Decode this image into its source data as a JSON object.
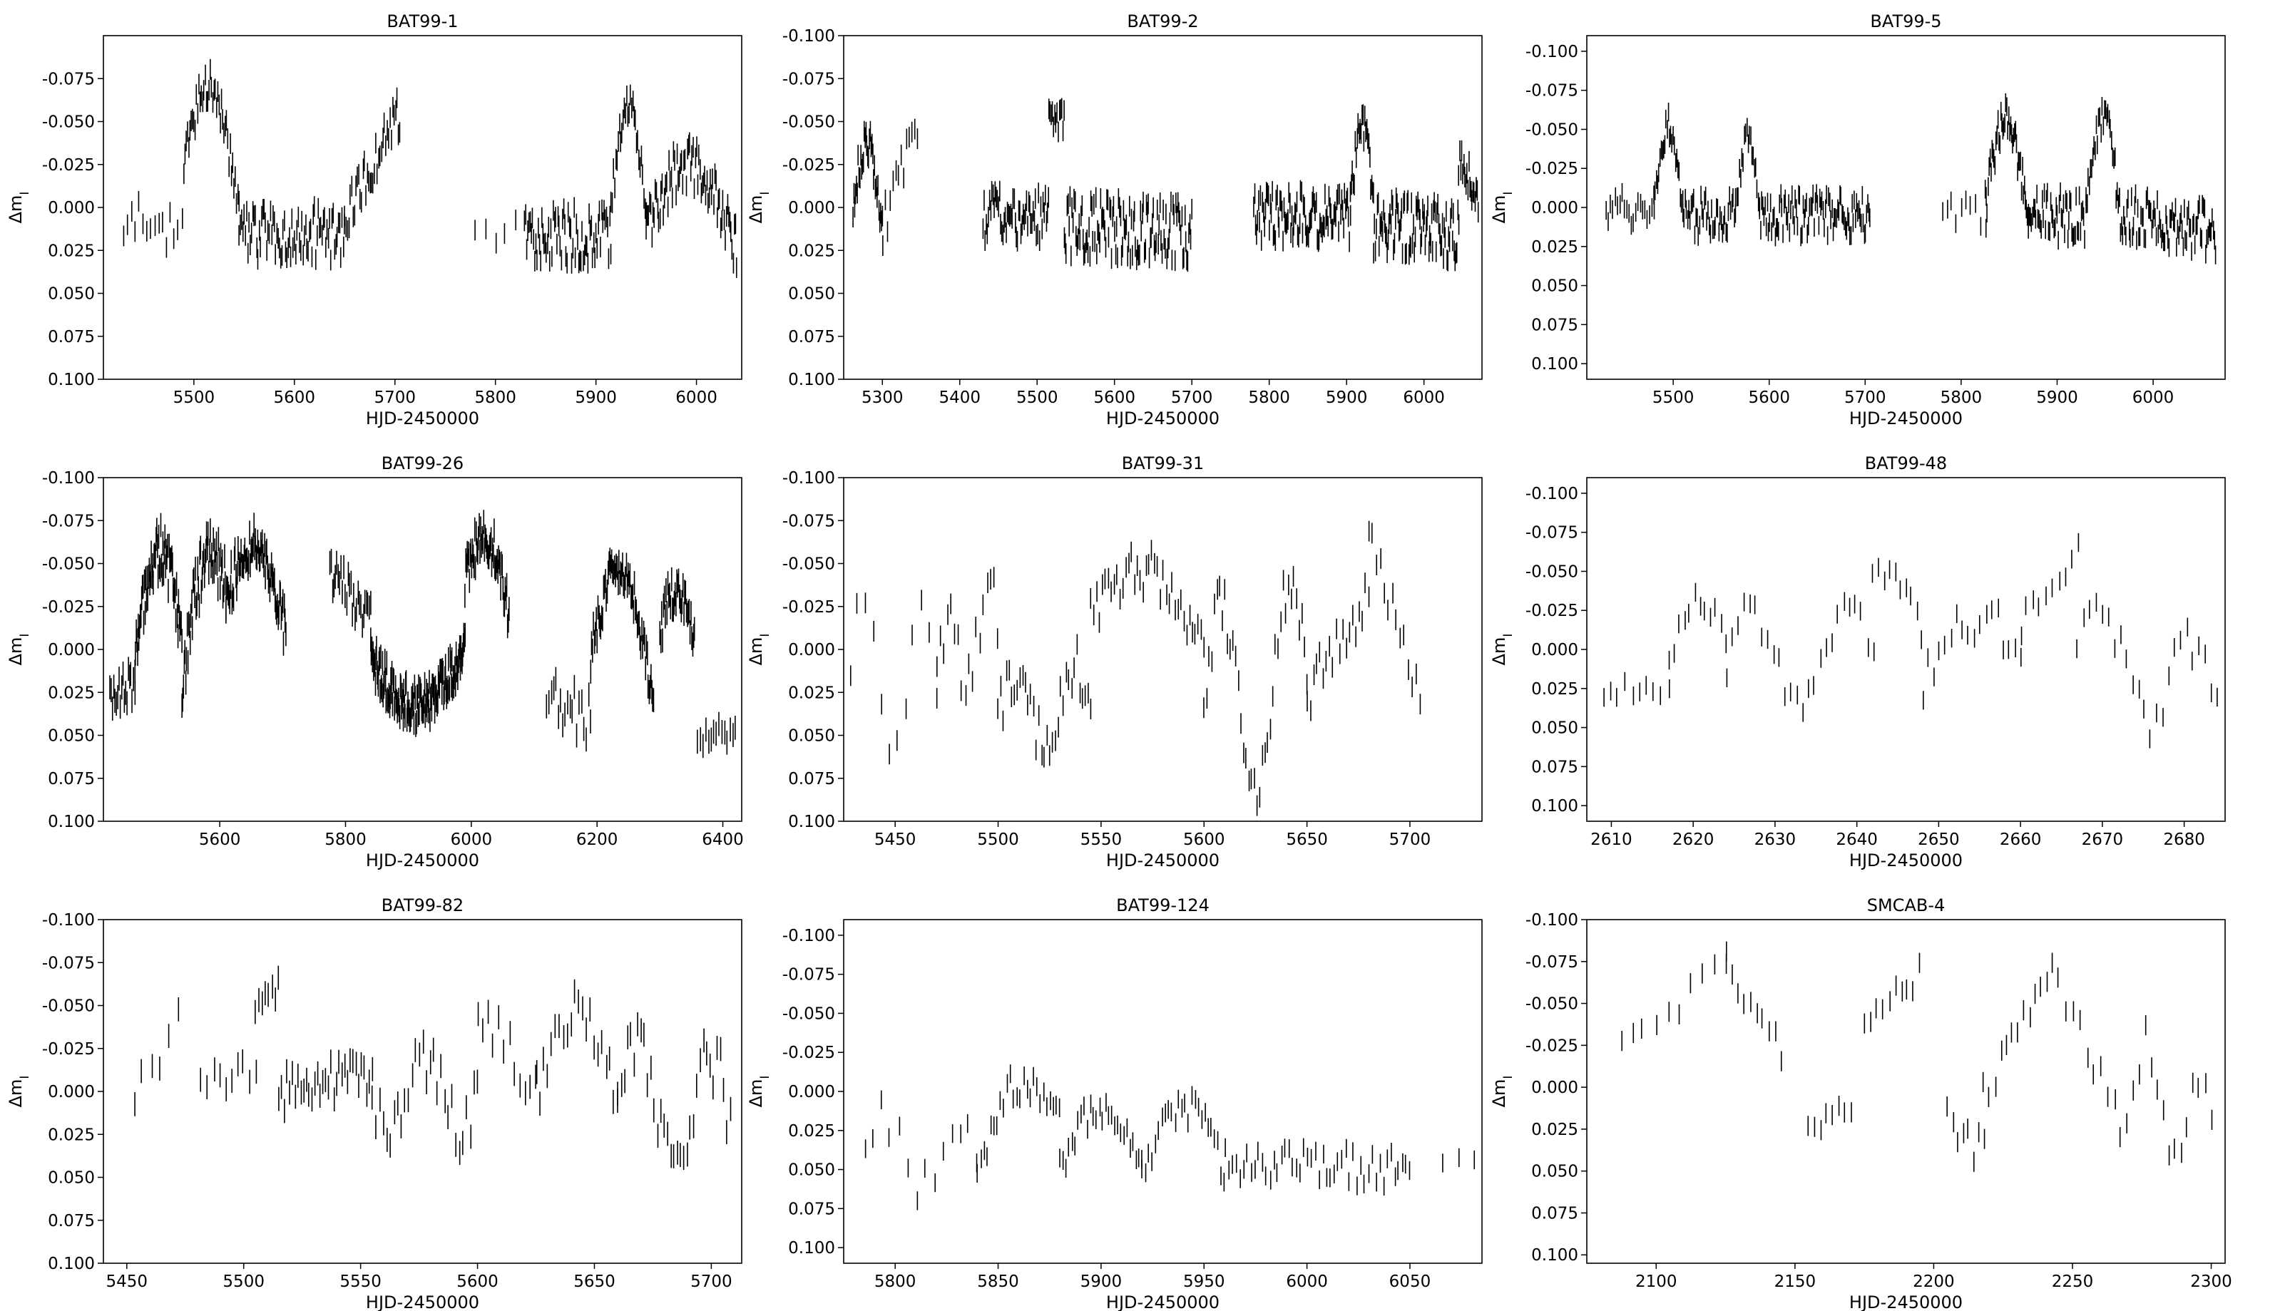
{
  "figure": {
    "ylabel": "Δm_I",
    "panels": [
      {
        "title": "BAT99-1",
        "xlabel": "HJD-2450000"
      },
      {
        "title": "BAT99-2",
        "xlabel": "HJD-2450000"
      },
      {
        "title": "BAT99-5",
        "xlabel": "HJD-2450000"
      },
      {
        "title": "BAT99-26",
        "xlabel": "HJD-2450000"
      },
      {
        "title": "BAT99-31",
        "xlabel": "HJD-2450000"
      },
      {
        "title": "BAT99-48",
        "xlabel": "HJD-2450000"
      },
      {
        "title": "BAT99-82",
        "xlabel": "HJD-2450000"
      },
      {
        "title": "BAT99-124",
        "xlabel": "HJD-2450000"
      },
      {
        "title": "SMCAB-4",
        "xlabel": "HJD-2450000"
      }
    ]
  },
  "chart_data": [
    {
      "type": "scatter",
      "title": "BAT99-1",
      "xlabel": "HJD-2450000",
      "ylabel": "Δm_I",
      "xlim": [
        5410,
        6045
      ],
      "ylim": [
        0.1,
        -0.1
      ],
      "y_inverted": true,
      "xticks": [
        5500,
        5600,
        5700,
        5800,
        5900,
        6000
      ],
      "yticks": [
        -0.075,
        -0.05,
        -0.025,
        0.0,
        0.025,
        0.05,
        0.075,
        0.1
      ],
      "error_bar": 0.006,
      "segments": [
        {
          "x0": 5430,
          "x1": 5488,
          "n": 16,
          "y0": 0.005,
          "y1": 0.015,
          "amp": 0.015,
          "noise": 0.012
        },
        {
          "x0": 5490,
          "x1": 5545,
          "n": 45,
          "y0": -0.025,
          "y1": 0.005,
          "amp": 0.06,
          "noise": 0.01,
          "shape": "hump"
        },
        {
          "x0": 5545,
          "x1": 5650,
          "n": 85,
          "y0": 0.015,
          "y1": 0.015,
          "amp": 0.012,
          "noise": 0.016
        },
        {
          "x0": 5650,
          "x1": 5705,
          "n": 40,
          "y0": 0.005,
          "y1": 0.01,
          "amp": 0.065,
          "noise": 0.012,
          "shape": "rise"
        },
        {
          "x0": 5780,
          "x1": 5830,
          "n": 6,
          "y0": 0.015,
          "y1": 0.015,
          "amp": 0.01,
          "noise": 0.01
        },
        {
          "x0": 5830,
          "x1": 5915,
          "n": 75,
          "y0": 0.015,
          "y1": 0.015,
          "amp": 0.01,
          "noise": 0.018
        },
        {
          "x0": 5915,
          "x1": 5950,
          "n": 30,
          "y0": 0.0,
          "y1": 0.0,
          "amp": 0.06,
          "noise": 0.01,
          "shape": "hump"
        },
        {
          "x0": 5950,
          "x1": 6040,
          "n": 80,
          "y0": 0.015,
          "y1": 0.025,
          "amp": 0.045,
          "noise": 0.014,
          "shape": "hump"
        }
      ]
    },
    {
      "type": "scatter",
      "title": "BAT99-2",
      "xlabel": "HJD-2450000",
      "ylabel": "Δm_I",
      "xlim": [
        5250,
        6075
      ],
      "ylim": [
        0.1,
        -0.1
      ],
      "y_inverted": true,
      "xticks": [
        5300,
        5400,
        5500,
        5600,
        5700,
        5800,
        5900,
        6000
      ],
      "yticks": [
        -0.1,
        -0.075,
        -0.05,
        -0.025,
        0.0,
        0.025,
        0.05,
        0.075,
        0.1
      ],
      "error_bar": 0.006,
      "segments": [
        {
          "x0": 5262,
          "x1": 5300,
          "n": 35,
          "y0": 0.0,
          "y1": 0.015,
          "amp": 0.045,
          "noise": 0.01,
          "shape": "hump"
        },
        {
          "x0": 5300,
          "x1": 5345,
          "n": 14,
          "y0": 0.01,
          "y1": -0.045,
          "amp": 0.0,
          "noise": 0.015
        },
        {
          "x0": 5430,
          "x1": 5515,
          "n": 60,
          "y0": 0.005,
          "y1": 0.005,
          "amp": 0.02,
          "noise": 0.015
        },
        {
          "x0": 5515,
          "x1": 5535,
          "n": 14,
          "y0": -0.05,
          "y1": -0.05,
          "amp": 0.0,
          "noise": 0.008
        },
        {
          "x0": 5535,
          "x1": 5700,
          "n": 130,
          "y0": 0.01,
          "y1": 0.015,
          "amp": 0.03,
          "noise": 0.018
        },
        {
          "x0": 5780,
          "x1": 5905,
          "n": 100,
          "y0": 0.005,
          "y1": 0.005,
          "amp": 0.01,
          "noise": 0.015
        },
        {
          "x0": 5905,
          "x1": 5935,
          "n": 25,
          "y0": 0.0,
          "y1": 0.0,
          "amp": 0.045,
          "noise": 0.012,
          "shape": "hump"
        },
        {
          "x0": 5935,
          "x1": 6045,
          "n": 95,
          "y0": 0.01,
          "y1": 0.015,
          "amp": 0.01,
          "noise": 0.017
        },
        {
          "x0": 6045,
          "x1": 6070,
          "n": 20,
          "y0": -0.03,
          "y1": -0.005,
          "amp": 0.015,
          "noise": 0.012
        }
      ]
    },
    {
      "type": "scatter",
      "title": "BAT99-5",
      "xlabel": "HJD-2450000",
      "ylabel": "Δm_I",
      "xlim": [
        5410,
        6075
      ],
      "ylim": [
        0.11,
        -0.11
      ],
      "y_inverted": true,
      "xticks": [
        5500,
        5600,
        5700,
        5800,
        5900,
        6000
      ],
      "yticks": [
        -0.1,
        -0.075,
        -0.05,
        -0.025,
        0.0,
        0.025,
        0.05,
        0.075,
        0.1
      ],
      "error_bar": 0.006,
      "segments": [
        {
          "x0": 5430,
          "x1": 5480,
          "n": 22,
          "y0": 0.0,
          "y1": 0.005,
          "amp": 0.015,
          "noise": 0.012
        },
        {
          "x0": 5480,
          "x1": 5510,
          "n": 25,
          "y0": 0.0,
          "y1": 0.005,
          "amp": 0.055,
          "noise": 0.01,
          "shape": "hump"
        },
        {
          "x0": 5510,
          "x1": 5565,
          "n": 45,
          "y0": 0.005,
          "y1": 0.005,
          "amp": 0.02,
          "noise": 0.014
        },
        {
          "x0": 5565,
          "x1": 5590,
          "n": 20,
          "y0": 0.0,
          "y1": 0.005,
          "amp": 0.045,
          "noise": 0.01,
          "shape": "hump"
        },
        {
          "x0": 5590,
          "x1": 5705,
          "n": 100,
          "y0": 0.005,
          "y1": 0.005,
          "amp": 0.01,
          "noise": 0.014
        },
        {
          "x0": 5780,
          "x1": 5825,
          "n": 10,
          "y0": 0.005,
          "y1": 0.005,
          "amp": 0.01,
          "noise": 0.01
        },
        {
          "x0": 5825,
          "x1": 5870,
          "n": 45,
          "y0": 0.0,
          "y1": 0.01,
          "amp": 0.06,
          "noise": 0.012,
          "shape": "hump"
        },
        {
          "x0": 5870,
          "x1": 5930,
          "n": 55,
          "y0": 0.005,
          "y1": 0.005,
          "amp": 0.05,
          "noise": 0.016
        },
        {
          "x0": 5930,
          "x1": 5965,
          "n": 30,
          "y0": 0.0,
          "y1": 0.005,
          "amp": 0.06,
          "noise": 0.012,
          "shape": "hump"
        },
        {
          "x0": 5965,
          "x1": 6065,
          "n": 90,
          "y0": 0.005,
          "y1": 0.015,
          "amp": 0.03,
          "noise": 0.016
        }
      ]
    },
    {
      "type": "scatter",
      "title": "BAT99-26",
      "xlabel": "HJD-2450000",
      "ylabel": "Δm_I",
      "xlim": [
        5415,
        6430
      ],
      "ylim": [
        0.1,
        -0.1
      ],
      "y_inverted": true,
      "xticks": [
        5600,
        5800,
        6000,
        6200,
        6400
      ],
      "yticks": [
        -0.1,
        -0.075,
        -0.05,
        -0.025,
        0.0,
        0.025,
        0.05,
        0.075,
        0.1
      ],
      "error_bar": 0.007,
      "segments": [
        {
          "x0": 5425,
          "x1": 5465,
          "n": 20,
          "y0": 0.025,
          "y1": 0.02,
          "amp": 0.01,
          "noise": 0.012
        },
        {
          "x0": 5465,
          "x1": 5540,
          "n": 70,
          "y0": 0.01,
          "y1": -0.005,
          "amp": 0.06,
          "noise": 0.015,
          "shape": "hump"
        },
        {
          "x0": 5540,
          "x1": 5610,
          "n": 60,
          "y0": 0.02,
          "y1": -0.04,
          "amp": 0.04,
          "noise": 0.016,
          "shape": "hump"
        },
        {
          "x0": 5610,
          "x1": 5705,
          "n": 80,
          "y0": -0.03,
          "y1": -0.01,
          "amp": 0.04,
          "noise": 0.014,
          "shape": "hump"
        },
        {
          "x0": 5775,
          "x1": 5840,
          "n": 30,
          "y0": -0.045,
          "y1": -0.02,
          "amp": 0.0,
          "noise": 0.012
        },
        {
          "x0": 5840,
          "x1": 5990,
          "n": 160,
          "y0": 0.005,
          "y1": 0.0,
          "amp": -0.03,
          "noise": 0.012,
          "shape": "hump"
        },
        {
          "x0": 5990,
          "x1": 6060,
          "n": 60,
          "y0": -0.04,
          "y1": -0.02,
          "amp": 0.035,
          "noise": 0.012,
          "shape": "hump"
        },
        {
          "x0": 6120,
          "x1": 6190,
          "n": 20,
          "y0": 0.03,
          "y1": 0.04,
          "amp": 0.0,
          "noise": 0.015
        },
        {
          "x0": 6190,
          "x1": 6290,
          "n": 70,
          "y0": 0.005,
          "y1": 0.035,
          "amp": 0.07,
          "noise": 0.012,
          "shape": "hump"
        },
        {
          "x0": 6300,
          "x1": 6355,
          "n": 40,
          "y0": -0.01,
          "y1": 0.0,
          "amp": 0.03,
          "noise": 0.012,
          "shape": "hump"
        },
        {
          "x0": 6360,
          "x1": 6420,
          "n": 15,
          "y0": 0.05,
          "y1": 0.05,
          "amp": 0.0,
          "noise": 0.008
        }
      ]
    },
    {
      "type": "scatter",
      "title": "BAT99-31",
      "xlabel": "HJD-2450000",
      "ylabel": "Δm_I",
      "xlim": [
        5425,
        5735
      ],
      "ylim": [
        0.1,
        -0.1
      ],
      "y_inverted": true,
      "xticks": [
        5450,
        5500,
        5550,
        5600,
        5650,
        5700
      ],
      "yticks": [
        -0.1,
        -0.075,
        -0.05,
        -0.025,
        0.0,
        0.025,
        0.05,
        0.075,
        0.1
      ],
      "error_bar": 0.006,
      "segments": [
        {
          "x0": 5428,
          "x1": 5470,
          "n": 12,
          "y0": 0.025,
          "y1": 0.02,
          "amp": 0.05,
          "noise": 0.015,
          "shape": "sine"
        },
        {
          "x0": 5470,
          "x1": 5500,
          "n": 18,
          "y0": 0.01,
          "y1": -0.02,
          "amp": 0.02,
          "noise": 0.015,
          "shape": "sine"
        },
        {
          "x0": 5500,
          "x1": 5545,
          "n": 35,
          "y0": 0.04,
          "y1": 0.03,
          "amp": 0.02,
          "noise": 0.015,
          "shape": "sine"
        },
        {
          "x0": 5545,
          "x1": 5600,
          "n": 40,
          "y0": -0.02,
          "y1": 0.0,
          "amp": 0.035,
          "noise": 0.014,
          "shape": "hump"
        },
        {
          "x0": 5600,
          "x1": 5650,
          "n": 40,
          "y0": 0.035,
          "y1": 0.02,
          "amp": 0.06,
          "noise": 0.015,
          "shape": "sine"
        },
        {
          "x0": 5650,
          "x1": 5680,
          "n": 20,
          "y0": 0.03,
          "y1": -0.035,
          "amp": 0.02,
          "noise": 0.015
        },
        {
          "x0": 5680,
          "x1": 5705,
          "n": 14,
          "y0": -0.07,
          "y1": 0.03,
          "amp": 0.0,
          "noise": 0.01
        }
      ]
    },
    {
      "type": "scatter",
      "title": "BAT99-48",
      "xlabel": "HJD-2450000",
      "ylabel": "Δm_I",
      "xlim": [
        2607,
        2685
      ],
      "ylim": [
        0.11,
        -0.11
      ],
      "y_inverted": true,
      "xticks": [
        2610,
        2620,
        2630,
        2640,
        2650,
        2660,
        2670,
        2680
      ],
      "yticks": [
        -0.1,
        -0.075,
        -0.05,
        -0.025,
        0.0,
        0.025,
        0.05,
        0.075,
        0.1
      ],
      "error_bar": 0.006,
      "segments": [
        {
          "x0": 2609,
          "x1": 2617,
          "n": 10,
          "y0": 0.025,
          "y1": 0.025,
          "amp": 0.0,
          "noise": 0.006
        },
        {
          "x0": 2617,
          "x1": 2624,
          "n": 12,
          "y0": 0.01,
          "y1": 0.0,
          "amp": 0.04,
          "noise": 0.01,
          "shape": "hump"
        },
        {
          "x0": 2624,
          "x1": 2642,
          "n": 26,
          "y0": 0.01,
          "y1": 0.0,
          "amp": 0.03,
          "noise": 0.012,
          "shape": "sine"
        },
        {
          "x0": 2642,
          "x1": 2648,
          "n": 10,
          "y0": -0.045,
          "y1": -0.01,
          "amp": 0.02,
          "noise": 0.008,
          "shape": "hump"
        },
        {
          "x0": 2648,
          "x1": 2660,
          "n": 18,
          "y0": 0.02,
          "y1": 0.0,
          "amp": 0.03,
          "noise": 0.015,
          "shape": "hump"
        },
        {
          "x0": 2660,
          "x1": 2667,
          "n": 10,
          "y0": -0.015,
          "y1": -0.065,
          "amp": 0.0,
          "noise": 0.008
        },
        {
          "x0": 2667,
          "x1": 2684,
          "n": 24,
          "y0": 0.0,
          "y1": 0.03,
          "amp": 0.03,
          "noise": 0.015,
          "shape": "sine"
        }
      ]
    },
    {
      "type": "scatter",
      "title": "BAT99-82",
      "xlabel": "HJD-2450000",
      "ylabel": "Δm_I",
      "xlim": [
        5440,
        5713
      ],
      "ylim": [
        0.1,
        -0.1
      ],
      "y_inverted": true,
      "xticks": [
        5450,
        5500,
        5550,
        5600,
        5650,
        5700
      ],
      "yticks": [
        -0.1,
        -0.075,
        -0.05,
        -0.025,
        0.0,
        0.025,
        0.05,
        0.075,
        0.1
      ],
      "error_bar": 0.007,
      "segments": [
        {
          "x0": 5453,
          "x1": 5472,
          "n": 6,
          "y0": 0.002,
          "y1": -0.04,
          "amp": 0.0,
          "noise": 0.01
        },
        {
          "x0": 5482,
          "x1": 5505,
          "n": 10,
          "y0": -0.01,
          "y1": -0.01,
          "amp": 0.0,
          "noise": 0.01
        },
        {
          "x0": 5505,
          "x1": 5515,
          "n": 8,
          "y0": -0.05,
          "y1": -0.06,
          "amp": 0.01,
          "noise": 0.01
        },
        {
          "x0": 5515,
          "x1": 5555,
          "n": 35,
          "y0": 0.0,
          "y1": -0.01,
          "amp": 0.01,
          "noise": 0.012
        },
        {
          "x0": 5555,
          "x1": 5600,
          "n": 30,
          "y0": 0.005,
          "y1": 0.0,
          "amp": -0.02,
          "noise": 0.015,
          "shape": "sine"
        },
        {
          "x0": 5600,
          "x1": 5625,
          "n": 12,
          "y0": -0.05,
          "y1": 0.0,
          "amp": 0.0,
          "noise": 0.012
        },
        {
          "x0": 5625,
          "x1": 5660,
          "n": 22,
          "y0": 0.005,
          "y1": 0.0,
          "amp": 0.05,
          "noise": 0.014,
          "shape": "hump"
        },
        {
          "x0": 5660,
          "x1": 5708,
          "n": 35,
          "y0": 0.0,
          "y1": 0.015,
          "amp": 0.03,
          "noise": 0.018,
          "shape": "sine"
        }
      ]
    },
    {
      "type": "scatter",
      "title": "BAT99-124",
      "xlabel": "HJD-2450000",
      "ylabel": "Δm_I",
      "xlim": [
        5775,
        6085
      ],
      "ylim": [
        0.11,
        -0.11
      ],
      "y_inverted": true,
      "xticks": [
        5800,
        5850,
        5900,
        5950,
        6000,
        6050
      ],
      "yticks": [
        -0.1,
        -0.075,
        -0.05,
        -0.025,
        0.0,
        0.025,
        0.05,
        0.075,
        0.1
      ],
      "error_bar": 0.006,
      "segments": [
        {
          "x0": 5785,
          "x1": 5840,
          "n": 14,
          "y0": 0.035,
          "y1": 0.045,
          "amp": 0.02,
          "noise": 0.012,
          "shape": "sine"
        },
        {
          "x0": 5840,
          "x1": 5880,
          "n": 26,
          "y0": 0.05,
          "y1": 0.02,
          "amp": 0.04,
          "noise": 0.012,
          "shape": "hump"
        },
        {
          "x0": 5880,
          "x1": 5920,
          "n": 28,
          "y0": 0.05,
          "y1": 0.05,
          "amp": 0.04,
          "noise": 0.01,
          "shape": "hump"
        },
        {
          "x0": 5920,
          "x1": 5960,
          "n": 26,
          "y0": 0.05,
          "y1": 0.05,
          "amp": 0.04,
          "noise": 0.01,
          "shape": "hump"
        },
        {
          "x0": 5960,
          "x1": 6050,
          "n": 50,
          "y0": 0.045,
          "y1": 0.05,
          "amp": 0.015,
          "noise": 0.012
        },
        {
          "x0": 6065,
          "x1": 6082,
          "n": 3,
          "y0": 0.05,
          "y1": 0.04,
          "amp": 0.0,
          "noise": 0.005
        }
      ]
    },
    {
      "type": "scatter",
      "title": "SMCAB-4",
      "xlabel": "HJD-2450000",
      "ylabel": "Δm_I",
      "xlim": [
        2075,
        2305
      ],
      "ylim": [
        0.105,
        -0.1
      ],
      "y_inverted": true,
      "xticks": [
        2100,
        2150,
        2200,
        2250,
        2300
      ],
      "yticks": [
        -0.1,
        -0.075,
        -0.05,
        -0.025,
        0.0,
        0.025,
        0.05,
        0.075,
        0.1
      ],
      "error_bar": 0.006,
      "segments": [
        {
          "x0": 2087,
          "x1": 2125,
          "n": 10,
          "y0": -0.025,
          "y1": -0.075,
          "amp": 0.0,
          "noise": 0.01
        },
        {
          "x0": 2125,
          "x1": 2145,
          "n": 10,
          "y0": -0.075,
          "y1": -0.02,
          "amp": 0.0,
          "noise": 0.008
        },
        {
          "x0": 2155,
          "x1": 2170,
          "n": 8,
          "y0": 0.03,
          "y1": 0.01,
          "amp": 0.0,
          "noise": 0.008
        },
        {
          "x0": 2175,
          "x1": 2195,
          "n": 10,
          "y0": -0.03,
          "y1": -0.07,
          "amp": 0.0,
          "noise": 0.01
        },
        {
          "x0": 2205,
          "x1": 2218,
          "n": 8,
          "y0": 0.02,
          "y1": 0.04,
          "amp": 0.0,
          "noise": 0.012
        },
        {
          "x0": 2218,
          "x1": 2245,
          "n": 14,
          "y0": 0.0,
          "y1": -0.075,
          "amp": 0.0,
          "noise": 0.012
        },
        {
          "x0": 2248,
          "x1": 2270,
          "n": 10,
          "y0": -0.05,
          "y1": 0.03,
          "amp": 0.0,
          "noise": 0.01
        },
        {
          "x0": 2272,
          "x1": 2300,
          "n": 14,
          "y0": 0.0,
          "y1": 0.03,
          "amp": 0.03,
          "noise": 0.012,
          "shape": "sine"
        }
      ]
    }
  ]
}
